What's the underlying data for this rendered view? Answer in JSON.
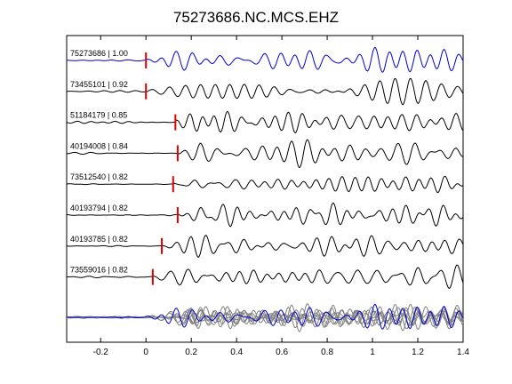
{
  "chart_data": {
    "type": "line",
    "title": "75273686.NC.MCS.EHZ",
    "xlabel": "",
    "ylabel": "",
    "xlim": [
      -0.35,
      1.4
    ],
    "x_ticks": [
      -0.2,
      0,
      0.2,
      0.4,
      0.6,
      0.8,
      1,
      1.2,
      1.4
    ],
    "x_tick_labels": [
      "-0.2",
      "0",
      "0.2",
      "0.4",
      "0.6",
      "0.8",
      "1",
      "1.2",
      "1.4"
    ],
    "grid": false,
    "traces": [
      {
        "label": "75273686 | 1.00",
        "pick_time": 0.0,
        "color": "#0000cc",
        "seed": 1
      },
      {
        "label": "73455101 | 0.92",
        "pick_time": 0.0,
        "color": "#000000",
        "seed": 2
      },
      {
        "label": "51184179 | 0.85",
        "pick_time": 0.13,
        "color": "#000000",
        "seed": 3
      },
      {
        "label": "40194008 | 0.84",
        "pick_time": 0.14,
        "color": "#000000",
        "seed": 4
      },
      {
        "label": "73512540 | 0.82",
        "pick_time": 0.12,
        "color": "#000000",
        "seed": 5
      },
      {
        "label": "40193794 | 0.82",
        "pick_time": 0.14,
        "color": "#000000",
        "seed": 6
      },
      {
        "label": "40193785 | 0.82",
        "pick_time": 0.07,
        "color": "#000000",
        "seed": 7
      },
      {
        "label": "73559016 | 0.82",
        "pick_time": 0.03,
        "color": "#000000",
        "seed": 8
      }
    ],
    "stack": {
      "colors": {
        "reference": "#0000cc",
        "others": "#808080"
      }
    },
    "pick_color": "#dd0000"
  }
}
